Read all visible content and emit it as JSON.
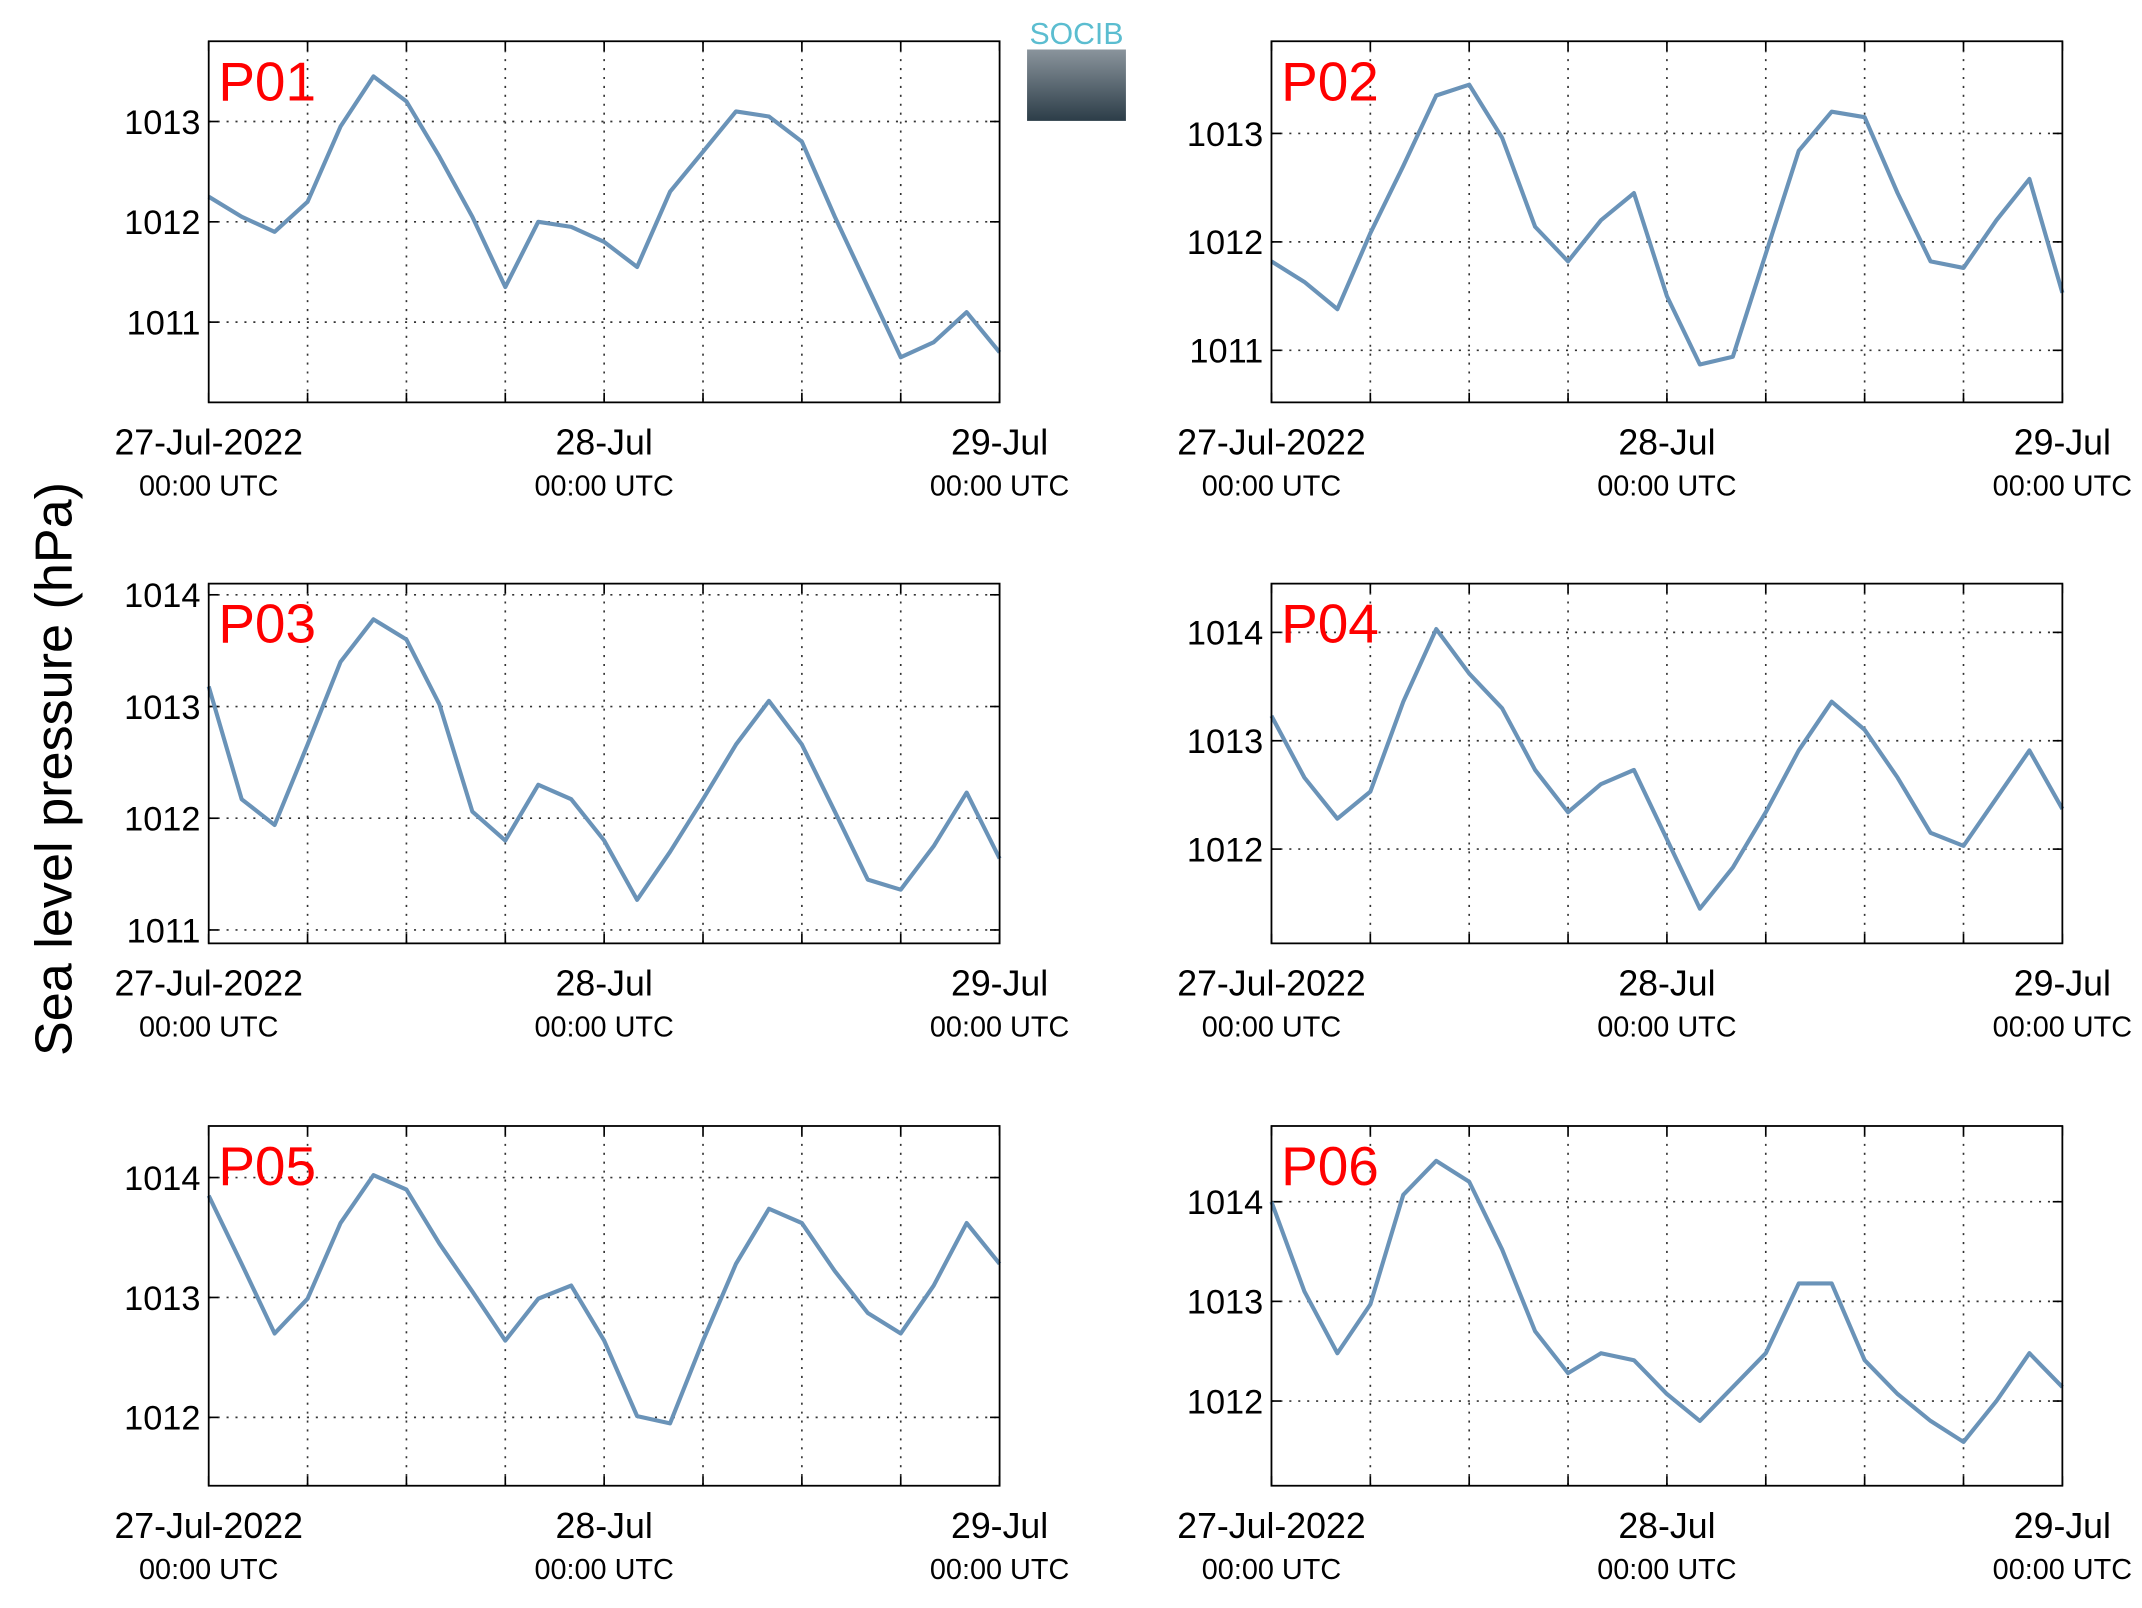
{
  "ylabel": "Sea level pressure (hPa)",
  "logo": "SOCIB",
  "chart_data": [
    {
      "type": "line",
      "title": "P01",
      "color": "#6a93b8",
      "x": [
        0,
        2,
        4,
        6,
        8,
        10,
        12,
        14,
        16,
        18,
        20,
        22,
        24,
        26,
        28,
        30,
        32,
        34,
        36,
        38,
        40,
        42,
        44,
        46,
        48
      ],
      "values": [
        1012.25,
        1012.05,
        1011.9,
        1012.2,
        1012.95,
        1013.45,
        1013.2,
        1012.65,
        1012.05,
        1011.35,
        1012.0,
        1011.95,
        1011.8,
        1011.55,
        1012.3,
        1012.7,
        1013.1,
        1013.05,
        1012.8,
        1012.05,
        1011.35,
        1010.65,
        1010.8,
        1011.1,
        1010.7
      ],
      "xlim": [
        0,
        48
      ],
      "xticks": [
        {
          "value": 0,
          "label": "27-Jul-2022"
        },
        {
          "value": 24,
          "label": "28-Jul"
        },
        {
          "value": 48,
          "label": "29-Jul"
        }
      ],
      "xtick_sublabels": [
        "00:00 UTC",
        "00:00 UTC",
        "00:00 UTC"
      ],
      "xminor": [
        6,
        12,
        18,
        30,
        36,
        42
      ],
      "ylim": [
        1010.2,
        1013.8
      ],
      "yticks": [
        1011,
        1012,
        1013
      ],
      "grid": true
    },
    {
      "type": "line",
      "title": "P02",
      "color": "#6a93b8",
      "x": [
        0,
        2,
        4,
        6,
        8,
        10,
        12,
        14,
        16,
        18,
        20,
        22,
        24,
        26,
        28,
        30,
        32,
        34,
        36,
        38,
        40,
        42,
        44,
        46,
        48
      ],
      "values": [
        1011.82,
        1011.63,
        1011.38,
        1012.08,
        1012.7,
        1013.35,
        1013.45,
        1012.96,
        1012.14,
        1011.82,
        1012.2,
        1012.45,
        1011.5,
        1010.87,
        1010.94,
        1011.89,
        1012.84,
        1013.2,
        1013.15,
        1012.45,
        1011.82,
        1011.76,
        1012.2,
        1012.58,
        1011.53
      ],
      "xlim": [
        0,
        48
      ],
      "xticks": [
        {
          "value": 0,
          "label": "27-Jul-2022"
        },
        {
          "value": 24,
          "label": "28-Jul"
        },
        {
          "value": 48,
          "label": "29-Jul"
        }
      ],
      "xtick_sublabels": [
        "00:00 UTC",
        "00:00 UTC",
        "00:00 UTC"
      ],
      "xminor": [
        6,
        12,
        18,
        30,
        36,
        42
      ],
      "ylim": [
        1010.52,
        1013.85
      ],
      "yticks": [
        1011,
        1012,
        1013
      ],
      "grid": true
    },
    {
      "type": "line",
      "title": "P03",
      "color": "#6a93b8",
      "x": [
        0,
        2,
        4,
        6,
        8,
        10,
        12,
        14,
        16,
        18,
        20,
        22,
        24,
        26,
        28,
        30,
        32,
        34,
        36,
        38,
        40,
        42,
        44,
        46,
        48
      ],
      "values": [
        1013.18,
        1012.17,
        1011.94,
        1012.66,
        1013.4,
        1013.78,
        1013.6,
        1013.02,
        1012.06,
        1011.8,
        1012.3,
        1012.17,
        1011.8,
        1011.27,
        1011.7,
        1012.17,
        1012.66,
        1013.05,
        1012.66,
        1012.06,
        1011.45,
        1011.36,
        1011.75,
        1012.23,
        1011.64
      ],
      "xlim": [
        0,
        48
      ],
      "xticks": [
        {
          "value": 0,
          "label": "27-Jul-2022"
        },
        {
          "value": 24,
          "label": "28-Jul"
        },
        {
          "value": 48,
          "label": "29-Jul"
        }
      ],
      "xtick_sublabels": [
        "00:00 UTC",
        "00:00 UTC",
        "00:00 UTC"
      ],
      "xminor": [
        6,
        12,
        18,
        30,
        36,
        42
      ],
      "ylim": [
        1010.88,
        1014.1
      ],
      "yticks": [
        1011,
        1012,
        1013,
        1014
      ],
      "grid": true
    },
    {
      "type": "line",
      "title": "P04",
      "color": "#6a93b8",
      "x": [
        0,
        2,
        4,
        6,
        8,
        10,
        12,
        14,
        16,
        18,
        20,
        22,
        24,
        26,
        28,
        30,
        32,
        34,
        36,
        38,
        40,
        42,
        44,
        46,
        48
      ],
      "values": [
        1013.23,
        1012.66,
        1012.28,
        1012.53,
        1013.36,
        1014.03,
        1013.62,
        1013.3,
        1012.73,
        1012.34,
        1012.6,
        1012.73,
        1012.09,
        1011.45,
        1011.83,
        1012.34,
        1012.91,
        1013.36,
        1013.1,
        1012.66,
        1012.15,
        1012.03,
        1012.47,
        1012.91,
        1012.37
      ],
      "xlim": [
        0,
        48
      ],
      "xticks": [
        {
          "value": 0,
          "label": "27-Jul-2022"
        },
        {
          "value": 24,
          "label": "28-Jul"
        },
        {
          "value": 48,
          "label": "29-Jul"
        }
      ],
      "xtick_sublabels": [
        "00:00 UTC",
        "00:00 UTC",
        "00:00 UTC"
      ],
      "xminor": [
        6,
        12,
        18,
        30,
        36,
        42
      ],
      "ylim": [
        1011.13,
        1014.45
      ],
      "yticks": [
        1012,
        1013,
        1014
      ],
      "grid": true
    },
    {
      "type": "line",
      "title": "P05",
      "color": "#6a93b8",
      "x": [
        0,
        2,
        4,
        6,
        8,
        10,
        12,
        14,
        16,
        18,
        20,
        22,
        24,
        26,
        28,
        30,
        32,
        34,
        36,
        38,
        40,
        42,
        44,
        46,
        48
      ],
      "values": [
        1013.85,
        1013.28,
        1012.7,
        1012.99,
        1013.62,
        1014.02,
        1013.9,
        1013.45,
        1013.05,
        1012.64,
        1012.99,
        1013.1,
        1012.64,
        1012.01,
        1011.95,
        1012.64,
        1013.28,
        1013.74,
        1013.62,
        1013.22,
        1012.87,
        1012.7,
        1013.1,
        1013.62,
        1013.28
      ],
      "xlim": [
        0,
        48
      ],
      "xticks": [
        {
          "value": 0,
          "label": "27-Jul-2022"
        },
        {
          "value": 24,
          "label": "28-Jul"
        },
        {
          "value": 48,
          "label": "29-Jul"
        }
      ],
      "xtick_sublabels": [
        "00:00 UTC",
        "00:00 UTC",
        "00:00 UTC"
      ],
      "xminor": [
        6,
        12,
        18,
        30,
        36,
        42
      ],
      "ylim": [
        1011.43,
        1014.43
      ],
      "yticks": [
        1012,
        1013,
        1014
      ],
      "grid": true
    },
    {
      "type": "line",
      "title": "P06",
      "color": "#6a93b8",
      "x": [
        0,
        2,
        4,
        6,
        8,
        10,
        12,
        14,
        16,
        18,
        20,
        22,
        24,
        26,
        28,
        30,
        32,
        34,
        36,
        38,
        40,
        42,
        44,
        46,
        48
      ],
      "values": [
        1014.0,
        1013.1,
        1012.48,
        1012.97,
        1014.07,
        1014.41,
        1014.2,
        1013.52,
        1012.7,
        1012.28,
        1012.48,
        1012.41,
        1012.07,
        1011.8,
        1012.14,
        1012.48,
        1013.18,
        1013.18,
        1012.41,
        1012.07,
        1011.8,
        1011.59,
        1012.0,
        1012.48,
        1012.14
      ],
      "xlim": [
        0,
        48
      ],
      "xticks": [
        {
          "value": 0,
          "label": "27-Jul-2022"
        },
        {
          "value": 24,
          "label": "28-Jul"
        },
        {
          "value": 48,
          "label": "29-Jul"
        }
      ],
      "xtick_sublabels": [
        "00:00 UTC",
        "00:00 UTC",
        "00:00 UTC"
      ],
      "xminor": [
        6,
        12,
        18,
        30,
        36,
        42
      ],
      "ylim": [
        1011.15,
        1014.76
      ],
      "yticks": [
        1012,
        1013,
        1014
      ],
      "grid": true
    }
  ]
}
